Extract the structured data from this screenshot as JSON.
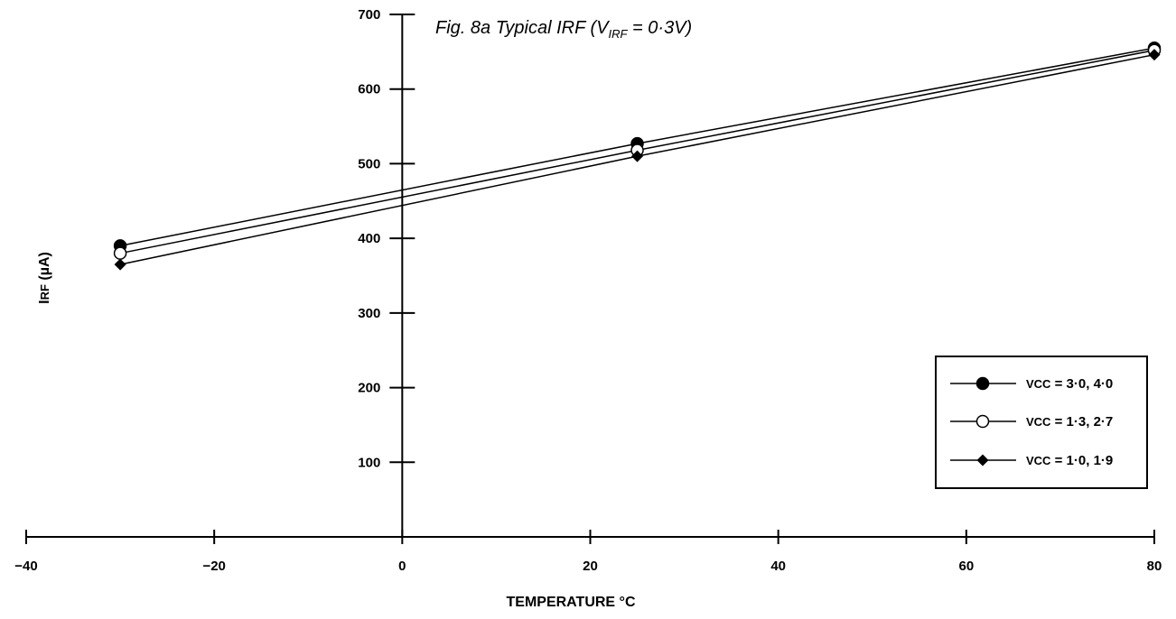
{
  "chart_data": {
    "type": "line",
    "title": {
      "prefix": "Fig. 8a Typical IRF (V",
      "subscript": "IRF",
      "suffix": " = 0·3V)"
    },
    "xlabel": "TEMPERATURE °C",
    "ylabel": {
      "main": "I",
      "small": "RF",
      "unit": " (µA)"
    },
    "xlim": [
      -40,
      80
    ],
    "ylim": [
      0,
      700
    ],
    "x_ticks": [
      -40,
      -20,
      0,
      20,
      40,
      60,
      80
    ],
    "x_tick_labels": [
      "−40",
      "−20",
      "0",
      "20",
      "40",
      "60",
      "80"
    ],
    "y_ticks": [
      100,
      200,
      300,
      400,
      500,
      600,
      700
    ],
    "y_tick_labels": [
      "100",
      "200",
      "300",
      "400",
      "500",
      "600",
      "700"
    ],
    "grid": false,
    "legend_position": "bottom-right",
    "series": [
      {
        "name": "VCC = 3·0, 4·0",
        "legend_vcc": "VCC",
        "legend_rest": " = 3·0, 4·0",
        "marker": "filled-circle",
        "x": [
          -30,
          25,
          80
        ],
        "y": [
          390,
          527,
          655
        ]
      },
      {
        "name": "VCC = 1·3, 2·7",
        "legend_vcc": "VCC",
        "legend_rest": " = 1·3, 2·7",
        "marker": "open-circle",
        "x": [
          -30,
          25,
          80
        ],
        "y": [
          380,
          518,
          652
        ]
      },
      {
        "name": "VCC = 1·0, 1·9",
        "legend_vcc": "VCC",
        "legend_rest": " = 1·0, 1·9",
        "marker": "filled-diamond",
        "x": [
          -30,
          25,
          80
        ],
        "y": [
          365,
          510,
          646
        ]
      }
    ]
  }
}
